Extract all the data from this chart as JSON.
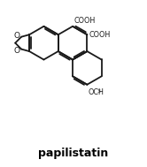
{
  "title": "papilistatin",
  "title_fontsize": 9,
  "background_color": "#ffffff",
  "line_color": "#1a1a1a",
  "line_width": 1.3,
  "text_color": "#000000",
  "label_cooh1": "COOH",
  "label_cooh2": "COOH",
  "label_och3": "OCH",
  "label_och3_sub": "3",
  "label_o1": "O",
  "label_o2": "O"
}
